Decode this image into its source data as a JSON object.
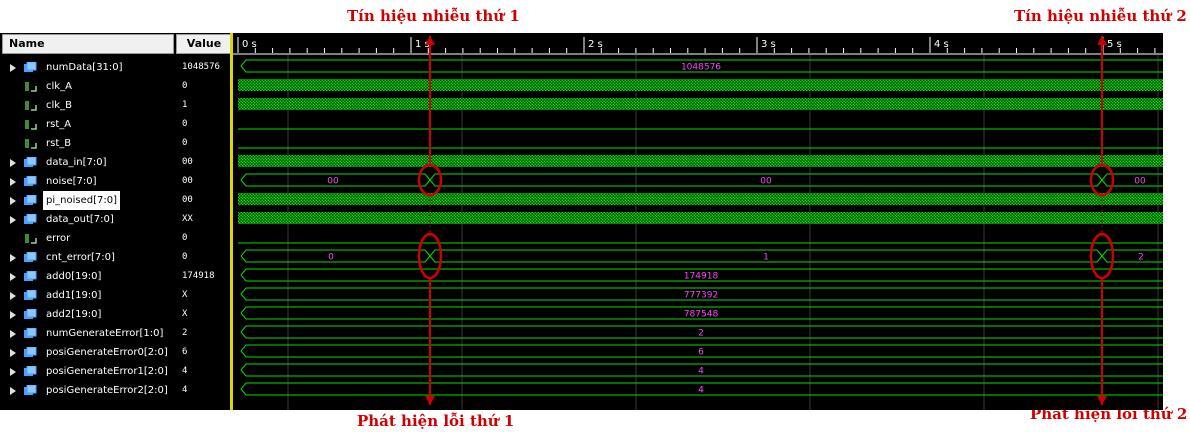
{
  "annotations": {
    "noise1": "Tín hiệu nhiễu thứ 1",
    "noise2": "Tín hiệu nhiễu thứ 2",
    "detect1": "Phát hiện lỗi thứ 1",
    "detect2": "Phát hiện lỗi thứ 2"
  },
  "header": {
    "name": "Name",
    "value": "Value"
  },
  "timeline": {
    "ticks": [
      "0 s",
      "1 s",
      "2 s",
      "3 s",
      "4 s",
      "5 s"
    ]
  },
  "signals": [
    {
      "name": "numData[31:0]",
      "value": "1048576",
      "kind": "bus",
      "wave": "const",
      "labels": [
        "1048576"
      ]
    },
    {
      "name": "clk_A",
      "value": "0",
      "kind": "bit",
      "wave": "clock"
    },
    {
      "name": "clk_B",
      "value": "1",
      "kind": "bit",
      "wave": "clock"
    },
    {
      "name": "rst_A",
      "value": "0",
      "kind": "bit",
      "wave": "low"
    },
    {
      "name": "rst_B",
      "value": "0",
      "kind": "bit",
      "wave": "low"
    },
    {
      "name": "data_in[7:0]",
      "value": "00",
      "kind": "bus",
      "wave": "dense"
    },
    {
      "name": "noise[7:0]",
      "value": "00",
      "kind": "bus",
      "wave": "noise",
      "labels": [
        "00",
        "00",
        "00"
      ]
    },
    {
      "name": "pi_noised[7:0]",
      "value": "00",
      "kind": "bus",
      "wave": "dense",
      "selected": true
    },
    {
      "name": "data_out[7:0]",
      "value": "XX",
      "kind": "bus",
      "wave": "dense"
    },
    {
      "name": "error",
      "value": "0",
      "kind": "bit",
      "wave": "low"
    },
    {
      "name": "cnt_error[7:0]",
      "value": "0",
      "kind": "bus",
      "wave": "count",
      "labels": [
        "0",
        "1",
        "2"
      ]
    },
    {
      "name": "add0[19:0]",
      "value": "174918",
      "kind": "bus",
      "wave": "const",
      "labels": [
        "174918"
      ]
    },
    {
      "name": "add1[19:0]",
      "value": "X",
      "kind": "bus",
      "wave": "const",
      "labels": [
        "777392"
      ]
    },
    {
      "name": "add2[19:0]",
      "value": "X",
      "kind": "bus",
      "wave": "const",
      "labels": [
        "787548"
      ]
    },
    {
      "name": "numGenerateError[1:0]",
      "value": "2",
      "kind": "bus",
      "wave": "const",
      "labels": [
        "2"
      ]
    },
    {
      "name": "posiGenerateError0[2:0]",
      "value": "6",
      "kind": "bus",
      "wave": "const",
      "labels": [
        "6"
      ]
    },
    {
      "name": "posiGenerateError1[2:0]",
      "value": "4",
      "kind": "bus",
      "wave": "const",
      "labels": [
        "4"
      ]
    },
    {
      "name": "posiGenerateError2[2:0]",
      "value": "4",
      "kind": "bus",
      "wave": "const",
      "labels": [
        "4"
      ]
    }
  ],
  "colors": {
    "wave": "#00e000",
    "value_label": "#ff40ff",
    "annotation": "#d00000",
    "bus_icon": "#4aa0ff",
    "bit_icon": "#3c8c3c"
  }
}
